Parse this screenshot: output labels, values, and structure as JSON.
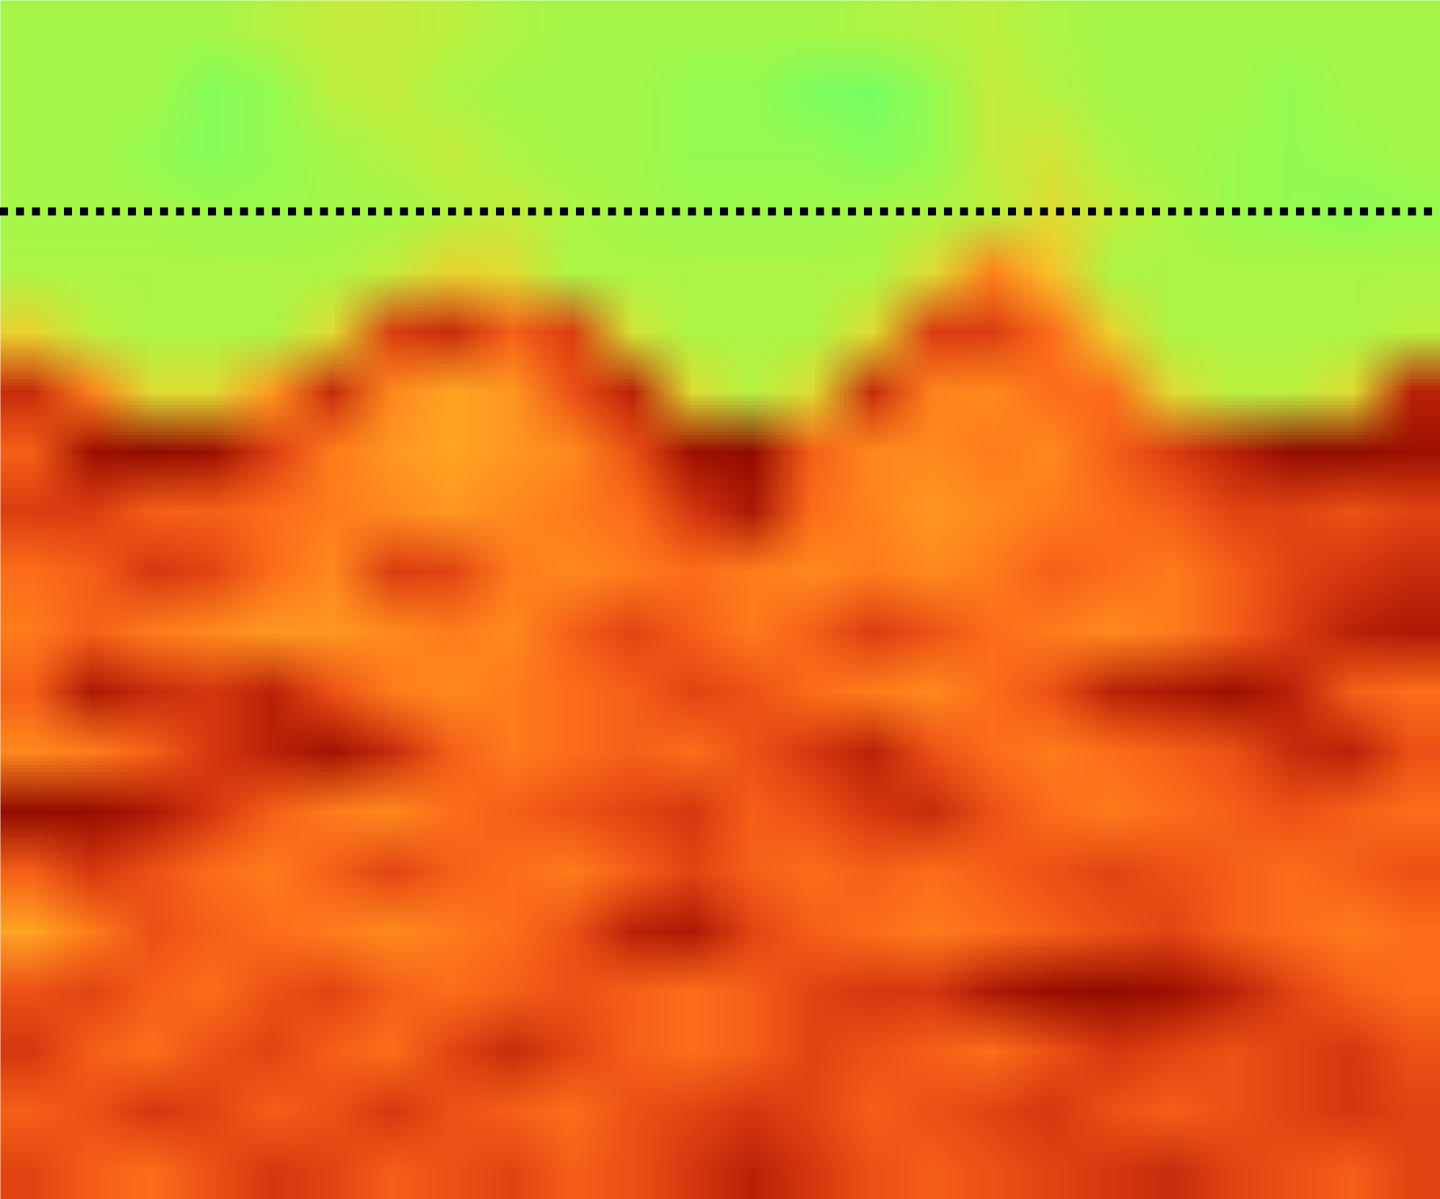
{
  "chart_data": {
    "type": "heatmap",
    "color": "turbo",
    "tick_labels": false,
    "xlim": [
      0,
      24
    ],
    "ylim": [
      20,
      0
    ],
    "zlim": [
      0,
      1
    ],
    "hline": 3.52,
    "line_style": "dotted",
    "values": [
      [
        0.52,
        0.52,
        0.52,
        0.52,
        0.54,
        0.56,
        0.56,
        0.55,
        0.53,
        0.52,
        0.52,
        0.52,
        0.52,
        0.52,
        0.53,
        0.54,
        0.55,
        0.53,
        0.52,
        0.52,
        0.52,
        0.52,
        0.52,
        0.52
      ],
      [
        0.52,
        0.52,
        0.52,
        0.48,
        0.5,
        0.55,
        0.56,
        0.53,
        0.52,
        0.52,
        0.52,
        0.5,
        0.5,
        0.47,
        0.46,
        0.5,
        0.56,
        0.54,
        0.52,
        0.52,
        0.52,
        0.5,
        0.52,
        0.52
      ],
      [
        0.52,
        0.52,
        0.5,
        0.48,
        0.5,
        0.52,
        0.54,
        0.56,
        0.53,
        0.52,
        0.52,
        0.5,
        0.5,
        0.5,
        0.48,
        0.5,
        0.56,
        0.58,
        0.53,
        0.52,
        0.51,
        0.5,
        0.51,
        0.52
      ],
      [
        0.52,
        0.52,
        0.52,
        0.51,
        0.51,
        0.52,
        0.52,
        0.54,
        0.56,
        0.53,
        0.52,
        0.51,
        0.51,
        0.51,
        0.52,
        0.53,
        0.55,
        0.6,
        0.56,
        0.53,
        0.51,
        0.5,
        0.49,
        0.5
      ],
      [
        0.53,
        0.53,
        0.53,
        0.53,
        0.53,
        0.53,
        0.56,
        0.62,
        0.6,
        0.53,
        0.53,
        0.53,
        0.53,
        0.53,
        0.53,
        0.6,
        0.75,
        0.65,
        0.53,
        0.53,
        0.53,
        0.53,
        0.53,
        0.53
      ],
      [
        0.62,
        0.55,
        0.53,
        0.53,
        0.53,
        0.6,
        0.85,
        0.88,
        0.8,
        0.85,
        0.58,
        0.53,
        0.53,
        0.53,
        0.6,
        0.85,
        0.85,
        0.78,
        0.62,
        0.53,
        0.53,
        0.53,
        0.53,
        0.55
      ],
      [
        0.88,
        0.75,
        0.6,
        0.6,
        0.72,
        0.88,
        0.74,
        0.7,
        0.72,
        0.82,
        0.9,
        0.6,
        0.54,
        0.6,
        0.88,
        0.75,
        0.74,
        0.78,
        0.78,
        0.6,
        0.55,
        0.55,
        0.6,
        0.9
      ],
      [
        0.8,
        0.95,
        0.98,
        0.95,
        0.85,
        0.76,
        0.72,
        0.7,
        0.72,
        0.74,
        0.82,
        0.95,
        0.98,
        0.8,
        0.74,
        0.74,
        0.76,
        0.74,
        0.8,
        0.85,
        0.9,
        0.98,
        0.98,
        0.95
      ],
      [
        0.85,
        0.85,
        0.8,
        0.8,
        0.78,
        0.76,
        0.74,
        0.72,
        0.74,
        0.76,
        0.78,
        0.86,
        0.92,
        0.78,
        0.75,
        0.72,
        0.74,
        0.76,
        0.78,
        0.8,
        0.84,
        0.84,
        0.82,
        0.84
      ],
      [
        0.78,
        0.8,
        0.86,
        0.84,
        0.78,
        0.74,
        0.85,
        0.84,
        0.76,
        0.74,
        0.76,
        0.78,
        0.76,
        0.74,
        0.76,
        0.74,
        0.76,
        0.8,
        0.78,
        0.76,
        0.8,
        0.84,
        0.86,
        0.88
      ],
      [
        0.76,
        0.8,
        0.76,
        0.74,
        0.72,
        0.72,
        0.74,
        0.76,
        0.74,
        0.8,
        0.84,
        0.8,
        0.76,
        0.8,
        0.85,
        0.82,
        0.78,
        0.76,
        0.74,
        0.76,
        0.8,
        0.85,
        0.9,
        0.92
      ],
      [
        0.8,
        0.92,
        0.88,
        0.86,
        0.9,
        0.82,
        0.76,
        0.74,
        0.76,
        0.78,
        0.8,
        0.84,
        0.82,
        0.78,
        0.76,
        0.74,
        0.78,
        0.82,
        0.9,
        0.92,
        0.95,
        0.9,
        0.8,
        0.78
      ],
      [
        0.74,
        0.76,
        0.8,
        0.86,
        0.9,
        0.94,
        0.88,
        0.8,
        0.76,
        0.78,
        0.8,
        0.78,
        0.82,
        0.86,
        0.9,
        0.82,
        0.78,
        0.76,
        0.78,
        0.8,
        0.82,
        0.88,
        0.9,
        0.82
      ],
      [
        0.98,
        0.96,
        0.92,
        0.86,
        0.8,
        0.76,
        0.74,
        0.78,
        0.8,
        0.82,
        0.84,
        0.86,
        0.8,
        0.82,
        0.86,
        0.88,
        0.82,
        0.78,
        0.76,
        0.78,
        0.8,
        0.82,
        0.8,
        0.78
      ],
      [
        0.8,
        0.86,
        0.82,
        0.78,
        0.76,
        0.8,
        0.84,
        0.8,
        0.78,
        0.76,
        0.8,
        0.84,
        0.8,
        0.78,
        0.8,
        0.78,
        0.8,
        0.82,
        0.84,
        0.82,
        0.8,
        0.78,
        0.8,
        0.82
      ],
      [
        0.7,
        0.76,
        0.82,
        0.8,
        0.78,
        0.76,
        0.74,
        0.76,
        0.78,
        0.82,
        0.9,
        0.92,
        0.84,
        0.8,
        0.78,
        0.76,
        0.78,
        0.8,
        0.82,
        0.84,
        0.8,
        0.78,
        0.76,
        0.78
      ],
      [
        0.82,
        0.84,
        0.8,
        0.78,
        0.82,
        0.84,
        0.8,
        0.78,
        0.8,
        0.82,
        0.8,
        0.78,
        0.8,
        0.84,
        0.86,
        0.86,
        0.92,
        0.96,
        0.98,
        0.95,
        0.9,
        0.84,
        0.8,
        0.78
      ],
      [
        0.86,
        0.8,
        0.78,
        0.82,
        0.84,
        0.8,
        0.78,
        0.84,
        0.88,
        0.84,
        0.8,
        0.78,
        0.8,
        0.84,
        0.82,
        0.8,
        0.78,
        0.82,
        0.86,
        0.84,
        0.82,
        0.84,
        0.86,
        0.82
      ],
      [
        0.8,
        0.82,
        0.86,
        0.84,
        0.8,
        0.82,
        0.86,
        0.82,
        0.8,
        0.78,
        0.82,
        0.84,
        0.86,
        0.84,
        0.8,
        0.82,
        0.84,
        0.86,
        0.82,
        0.8,
        0.82,
        0.84,
        0.86,
        0.84
      ],
      [
        0.84,
        0.8,
        0.78,
        0.82,
        0.86,
        0.84,
        0.8,
        0.82,
        0.84,
        0.8,
        0.82,
        0.86,
        0.9,
        0.86,
        0.82,
        0.8,
        0.82,
        0.84,
        0.86,
        0.88,
        0.84,
        0.82,
        0.8,
        0.84
      ]
    ]
  }
}
